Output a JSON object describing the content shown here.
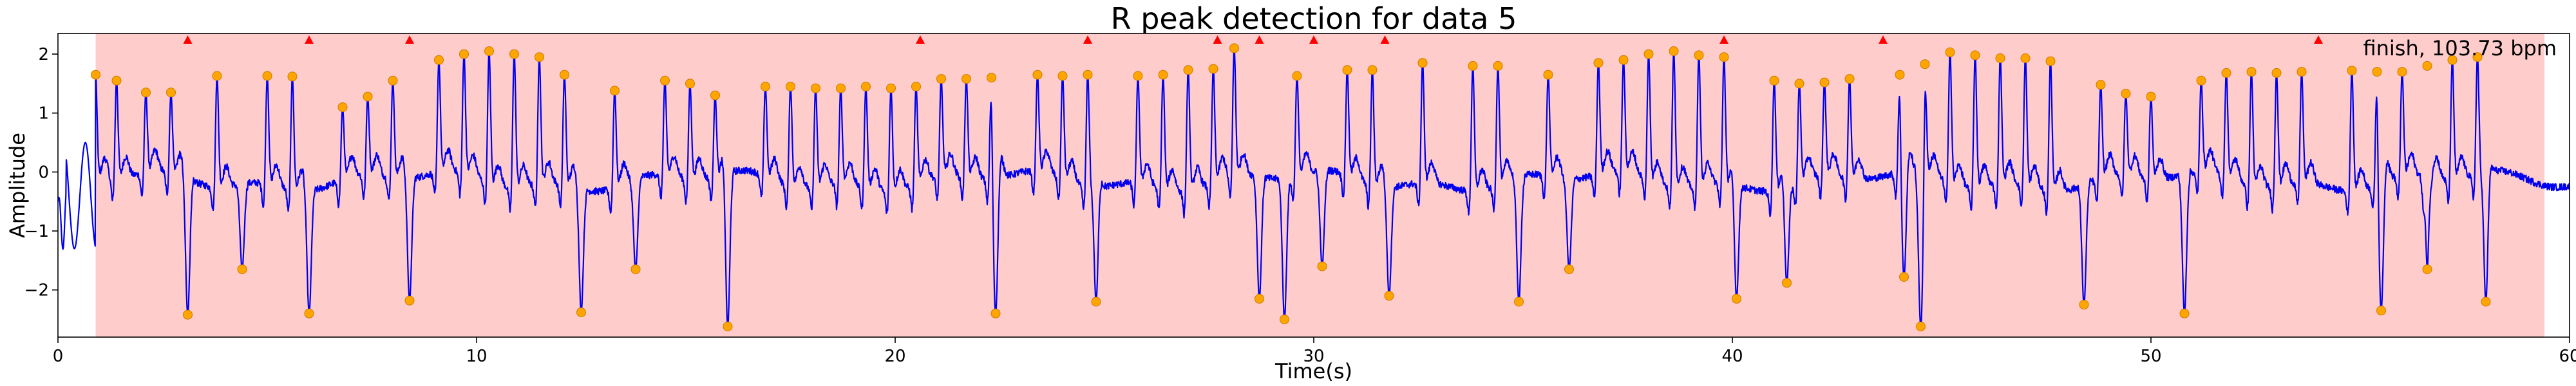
{
  "chart_data": {
    "type": "line",
    "title": "R peak detection for data 5",
    "xlabel": "Time(s)",
    "ylabel": "Amplitude",
    "xlim": [
      0,
      60
    ],
    "ylim": [
      -2.8,
      2.35
    ],
    "xticks": [
      0,
      10,
      20,
      30,
      40,
      50,
      60
    ],
    "xtick_labels": [
      "0",
      "10",
      "20",
      "30",
      "40",
      "50",
      "60"
    ],
    "yticks": [
      -2,
      -1,
      0,
      1,
      2
    ],
    "ytick_labels": [
      "−2",
      "−1",
      "0",
      "1",
      "2"
    ],
    "grid": false,
    "annotation": "finish, 103.73 bpm",
    "colors": {
      "signal": "#0000ee",
      "region_fill": "#ffcccc",
      "peak_marker": "#ffa500",
      "flag_marker": "#ff0000"
    },
    "region": {
      "x_start": 0.9,
      "x_end": 59.4
    },
    "peaks_positive": [
      [
        0.9,
        1.65
      ],
      [
        1.4,
        1.55
      ],
      [
        2.1,
        1.35
      ],
      [
        2.7,
        1.35
      ],
      [
        3.8,
        1.63
      ],
      [
        5.0,
        1.63
      ],
      [
        5.6,
        1.62
      ],
      [
        6.8,
        1.1
      ],
      [
        7.4,
        1.28
      ],
      [
        8.0,
        1.55
      ],
      [
        9.1,
        1.9
      ],
      [
        9.7,
        2.0
      ],
      [
        10.3,
        2.05
      ],
      [
        10.9,
        2.0
      ],
      [
        11.5,
        1.95
      ],
      [
        12.1,
        1.65
      ],
      [
        13.3,
        1.38
      ],
      [
        14.5,
        1.55
      ],
      [
        15.1,
        1.5
      ],
      [
        15.7,
        1.3
      ],
      [
        16.9,
        1.45
      ],
      [
        17.5,
        1.45
      ],
      [
        18.1,
        1.42
      ],
      [
        18.7,
        1.42
      ],
      [
        19.3,
        1.45
      ],
      [
        19.9,
        1.42
      ],
      [
        20.5,
        1.45
      ],
      [
        21.1,
        1.58
      ],
      [
        21.7,
        1.58
      ],
      [
        22.3,
        1.6
      ],
      [
        23.4,
        1.65
      ],
      [
        24.0,
        1.63
      ],
      [
        24.6,
        1.65
      ],
      [
        25.8,
        1.63
      ],
      [
        26.4,
        1.65
      ],
      [
        27.0,
        1.73
      ],
      [
        27.6,
        1.75
      ],
      [
        28.1,
        2.1
      ],
      [
        29.6,
        1.63
      ],
      [
        30.8,
        1.73
      ],
      [
        31.4,
        1.73
      ],
      [
        32.6,
        1.85
      ],
      [
        33.8,
        1.8
      ],
      [
        34.4,
        1.8
      ],
      [
        35.6,
        1.65
      ],
      [
        36.8,
        1.85
      ],
      [
        37.4,
        1.9
      ],
      [
        38.0,
        2.0
      ],
      [
        38.6,
        2.05
      ],
      [
        39.2,
        1.98
      ],
      [
        39.8,
        1.95
      ],
      [
        41.0,
        1.55
      ],
      [
        41.6,
        1.5
      ],
      [
        42.2,
        1.52
      ],
      [
        42.8,
        1.58
      ],
      [
        44.0,
        1.65
      ],
      [
        44.6,
        1.83
      ],
      [
        45.2,
        2.03
      ],
      [
        45.8,
        1.98
      ],
      [
        46.4,
        1.93
      ],
      [
        47.0,
        1.93
      ],
      [
        47.6,
        1.88
      ],
      [
        48.8,
        1.48
      ],
      [
        49.4,
        1.33
      ],
      [
        50.0,
        1.28
      ],
      [
        51.2,
        1.55
      ],
      [
        51.8,
        1.68
      ],
      [
        52.4,
        1.7
      ],
      [
        53.0,
        1.68
      ],
      [
        53.6,
        1.7
      ],
      [
        54.8,
        1.72
      ],
      [
        55.4,
        1.7
      ],
      [
        56.0,
        1.7
      ],
      [
        56.6,
        1.8
      ],
      [
        57.2,
        1.9
      ],
      [
        57.8,
        1.95
      ]
    ],
    "peaks_negative": [
      [
        3.1,
        -2.42
      ],
      [
        4.4,
        -1.65
      ],
      [
        6.0,
        -2.4
      ],
      [
        8.4,
        -2.18
      ],
      [
        12.5,
        -2.38
      ],
      [
        13.8,
        -1.65
      ],
      [
        16.0,
        -2.62
      ],
      [
        22.4,
        -2.4
      ],
      [
        24.8,
        -2.2
      ],
      [
        28.7,
        -2.15
      ],
      [
        29.3,
        -2.5
      ],
      [
        30.2,
        -1.6
      ],
      [
        31.8,
        -2.1
      ],
      [
        34.9,
        -2.2
      ],
      [
        36.1,
        -1.65
      ],
      [
        40.1,
        -2.15
      ],
      [
        41.3,
        -1.88
      ],
      [
        44.1,
        -1.78
      ],
      [
        44.5,
        -2.62
      ],
      [
        48.4,
        -2.25
      ],
      [
        50.8,
        -2.4
      ],
      [
        55.5,
        -2.35
      ],
      [
        56.6,
        -1.65
      ],
      [
        58.0,
        -2.2
      ]
    ],
    "flags": [
      3.1,
      6.0,
      8.4,
      20.6,
      24.6,
      27.7,
      28.7,
      30.0,
      31.7,
      39.8,
      43.6,
      54.0
    ]
  }
}
